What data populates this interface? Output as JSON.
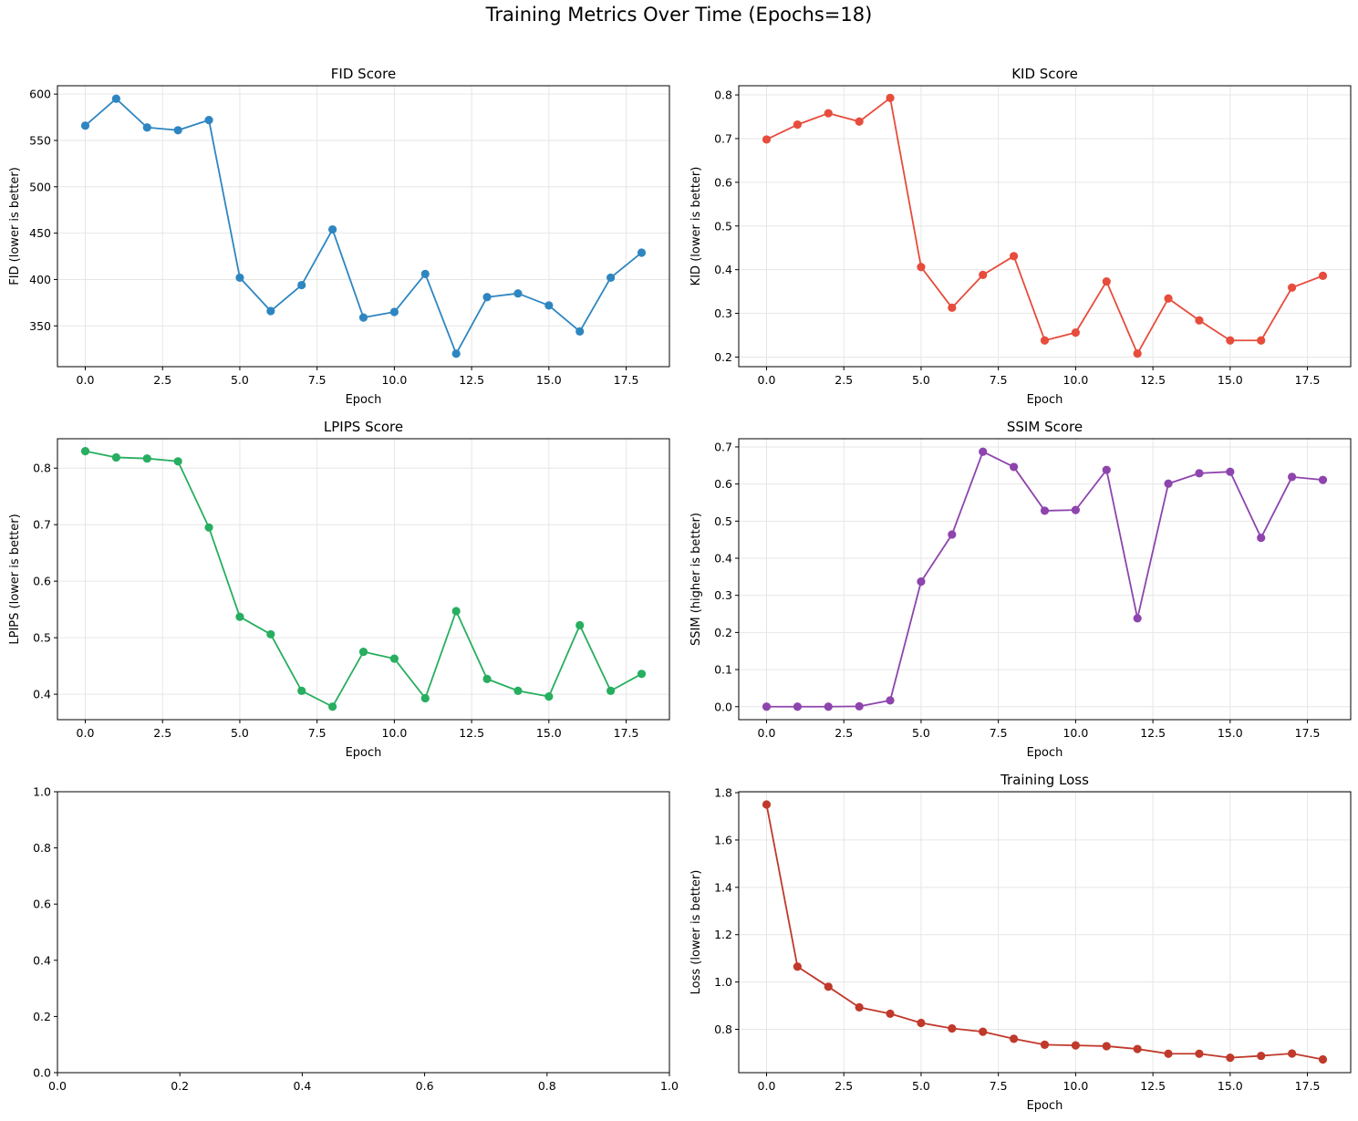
{
  "figure": {
    "title": "Training Metrics Over Time (Epochs=18)"
  },
  "chart_data": [
    {
      "id": "fid",
      "type": "line",
      "title": "FID Score",
      "xlabel": "Epoch",
      "ylabel": "FID (lower is better)",
      "color": "#2e86c1",
      "grid": true,
      "xlim": [
        -0.9,
        18.9
      ],
      "ylim": [
        306,
        609
      ],
      "xticks": [
        0,
        2.5,
        5,
        7.5,
        10,
        12.5,
        15,
        17.5
      ],
      "xtick_labels": [
        "0.0",
        "2.5",
        "5.0",
        "7.5",
        "10.0",
        "12.5",
        "15.0",
        "17.5"
      ],
      "yticks": [
        350,
        400,
        450,
        500,
        550,
        600
      ],
      "ytick_labels": [
        "350",
        "400",
        "450",
        "500",
        "550",
        "600"
      ],
      "x": [
        0,
        1,
        2,
        3,
        4,
        5,
        6,
        7,
        8,
        9,
        10,
        11,
        12,
        13,
        14,
        15,
        16,
        17,
        18
      ],
      "values": [
        566,
        595,
        564,
        561,
        572,
        402,
        366,
        394,
        454,
        359,
        365,
        406,
        320,
        381,
        385,
        372,
        344,
        402,
        429
      ]
    },
    {
      "id": "kid",
      "type": "line",
      "title": "KID Score",
      "xlabel": "Epoch",
      "ylabel": "KID (lower is better)",
      "color": "#e74c3c",
      "grid": true,
      "xlim": [
        -0.9,
        18.9
      ],
      "ylim": [
        0.178,
        0.821
      ],
      "xticks": [
        0,
        2.5,
        5,
        7.5,
        10,
        12.5,
        15,
        17.5
      ],
      "xtick_labels": [
        "0.0",
        "2.5",
        "5.0",
        "7.5",
        "10.0",
        "12.5",
        "15.0",
        "17.5"
      ],
      "yticks": [
        0.2,
        0.3,
        0.4,
        0.5,
        0.6,
        0.7,
        0.8
      ],
      "ytick_labels": [
        "0.2",
        "0.3",
        "0.4",
        "0.5",
        "0.6",
        "0.7",
        "0.8"
      ],
      "x": [
        0,
        1,
        2,
        3,
        4,
        5,
        6,
        7,
        8,
        9,
        10,
        11,
        12,
        13,
        14,
        15,
        16,
        17,
        18
      ],
      "values": [
        0.698,
        0.732,
        0.758,
        0.739,
        0.793,
        0.406,
        0.313,
        0.388,
        0.431,
        0.238,
        0.256,
        0.373,
        0.208,
        0.334,
        0.284,
        0.238,
        0.238,
        0.359,
        0.386
      ]
    },
    {
      "id": "lpips",
      "type": "line",
      "title": "LPIPS Score",
      "xlabel": "Epoch",
      "ylabel": "LPIPS (lower is better)",
      "color": "#27ae60",
      "grid": true,
      "xlim": [
        -0.9,
        18.9
      ],
      "ylim": [
        0.355,
        0.852
      ],
      "xticks": [
        0,
        2.5,
        5,
        7.5,
        10,
        12.5,
        15,
        17.5
      ],
      "xtick_labels": [
        "0.0",
        "2.5",
        "5.0",
        "7.5",
        "10.0",
        "12.5",
        "15.0",
        "17.5"
      ],
      "yticks": [
        0.4,
        0.5,
        0.6,
        0.7,
        0.8
      ],
      "ytick_labels": [
        "0.4",
        "0.5",
        "0.6",
        "0.7",
        "0.8"
      ],
      "x": [
        0,
        1,
        2,
        3,
        4,
        5,
        6,
        7,
        8,
        9,
        10,
        11,
        12,
        13,
        14,
        15,
        16,
        17,
        18
      ],
      "values": [
        0.83,
        0.819,
        0.817,
        0.812,
        0.695,
        0.537,
        0.506,
        0.406,
        0.378,
        0.475,
        0.463,
        0.393,
        0.547,
        0.427,
        0.406,
        0.396,
        0.522,
        0.406,
        0.436
      ]
    },
    {
      "id": "ssim",
      "type": "line",
      "title": "SSIM Score",
      "xlabel": "Epoch",
      "ylabel": "SSIM (higher is better)",
      "color": "#8e44ad",
      "grid": true,
      "xlim": [
        -0.9,
        18.9
      ],
      "ylim": [
        -0.035,
        0.722
      ],
      "xticks": [
        0,
        2.5,
        5,
        7.5,
        10,
        12.5,
        15,
        17.5
      ],
      "xtick_labels": [
        "0.0",
        "2.5",
        "5.0",
        "7.5",
        "10.0",
        "12.5",
        "15.0",
        "17.5"
      ],
      "yticks": [
        0.0,
        0.1,
        0.2,
        0.3,
        0.4,
        0.5,
        0.6,
        0.7
      ],
      "ytick_labels": [
        "0.0",
        "0.1",
        "0.2",
        "0.3",
        "0.4",
        "0.5",
        "0.6",
        "0.7"
      ],
      "x": [
        0,
        1,
        2,
        3,
        4,
        5,
        6,
        7,
        8,
        9,
        10,
        11,
        12,
        13,
        14,
        15,
        16,
        17,
        18
      ],
      "values": [
        0.0,
        0.0,
        0.0,
        0.001,
        0.017,
        0.337,
        0.464,
        0.687,
        0.646,
        0.528,
        0.53,
        0.638,
        0.238,
        0.601,
        0.629,
        0.633,
        0.455,
        0.619,
        0.611
      ]
    },
    {
      "id": "empty",
      "type": "line",
      "title": "",
      "xlabel": "",
      "ylabel": "",
      "color": "#000000",
      "grid": false,
      "xlim": [
        0,
        1
      ],
      "ylim": [
        0,
        1
      ],
      "xticks": [
        0,
        0.2,
        0.4,
        0.6,
        0.8,
        1.0
      ],
      "xtick_labels": [
        "0.0",
        "0.2",
        "0.4",
        "0.6",
        "0.8",
        "1.0"
      ],
      "yticks": [
        0,
        0.2,
        0.4,
        0.6,
        0.8,
        1.0
      ],
      "ytick_labels": [
        "0.0",
        "0.2",
        "0.4",
        "0.6",
        "0.8",
        "1.0"
      ],
      "x": [],
      "values": []
    },
    {
      "id": "loss",
      "type": "line",
      "title": "Training Loss",
      "xlabel": "Epoch",
      "ylabel": "Loss (lower is better)",
      "color": "#c0392b",
      "grid": true,
      "xlim": [
        -0.9,
        18.9
      ],
      "ylim": [
        0.617,
        1.804
      ],
      "xticks": [
        0,
        2.5,
        5,
        7.5,
        10,
        12.5,
        15,
        17.5
      ],
      "xtick_labels": [
        "0.0",
        "2.5",
        "5.0",
        "7.5",
        "10.0",
        "12.5",
        "15.0",
        "17.5"
      ],
      "yticks": [
        0.8,
        1.0,
        1.2,
        1.4,
        1.6,
        1.8
      ],
      "ytick_labels": [
        "0.8",
        "1.0",
        "1.2",
        "1.4",
        "1.6",
        "1.8"
      ],
      "x": [
        0,
        1,
        2,
        3,
        4,
        5,
        6,
        7,
        8,
        9,
        10,
        11,
        12,
        13,
        14,
        15,
        16,
        17,
        18
      ],
      "values": [
        1.75,
        1.065,
        0.98,
        0.893,
        0.866,
        0.827,
        0.804,
        0.79,
        0.76,
        0.735,
        0.732,
        0.729,
        0.717,
        0.697,
        0.697,
        0.68,
        0.688,
        0.698,
        0.673
      ]
    }
  ]
}
